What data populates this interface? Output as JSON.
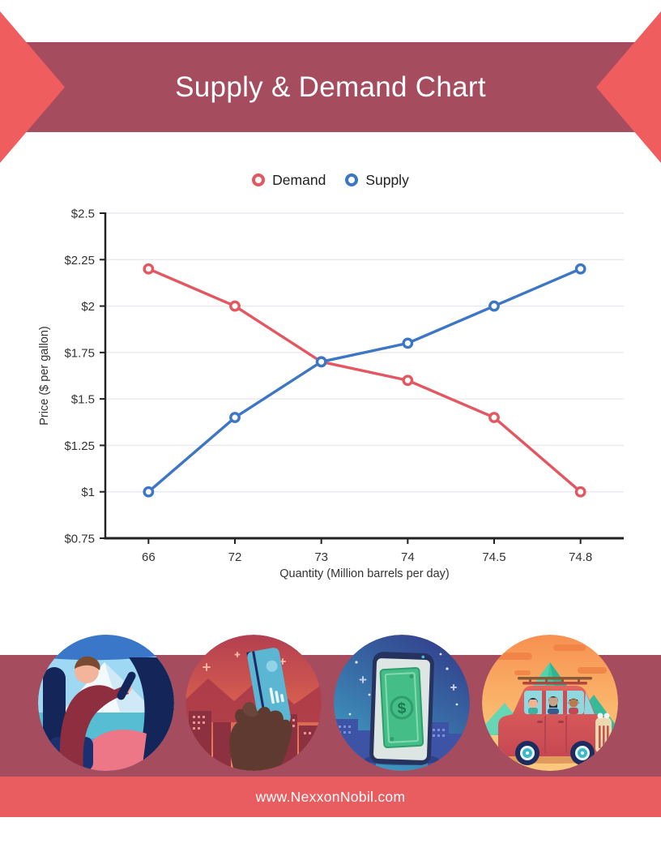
{
  "header": {
    "title": "Supply & Demand Chart"
  },
  "chart_data": {
    "type": "line",
    "x": [
      "66",
      "72",
      "73",
      "74",
      "74.5",
      "74.8"
    ],
    "xlabel": "Quantity (Million barrels per day)",
    "ylabel": "Price ($ per gallon)",
    "ylim": [
      0.75,
      2.5
    ],
    "ytick_step": 0.25,
    "ytick_labels": [
      "$0.75",
      "$1",
      "$1.25",
      "$1.5",
      "$1.75",
      "$2",
      "$2.25",
      "$2.5"
    ],
    "grid": "horizontal",
    "legend_position": "top",
    "series": [
      {
        "name": "Demand",
        "color": "#e25760",
        "values": [
          2.2,
          2.0,
          1.7,
          1.6,
          1.4,
          1.0
        ]
      },
      {
        "name": "Supply",
        "color": "#3d76c4",
        "values": [
          1.0,
          1.4,
          1.7,
          1.8,
          2.0,
          2.2
        ]
      }
    ]
  },
  "illustrations": [
    {
      "name": "driver-illustration"
    },
    {
      "name": "credit-card-illustration"
    },
    {
      "name": "money-phone-illustration"
    },
    {
      "name": "road-trip-illustration"
    }
  ],
  "footer": {
    "url": "www.NexxonNobil.com"
  },
  "theme": {
    "banner_maroon": "#a54c5e",
    "ribbon_red": "#f05d5e",
    "footer_red": "#e95c5f",
    "page_bg": "#ffffff",
    "chart_text": "#333333",
    "axis_color": "#222222",
    "grid_color": "#e8e8f0"
  }
}
